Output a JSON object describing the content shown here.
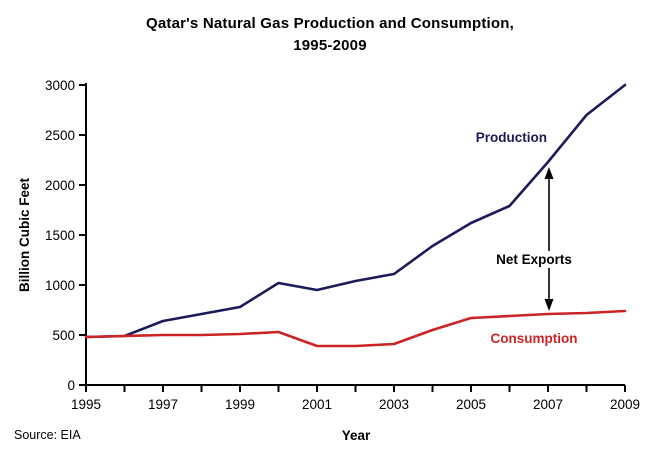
{
  "title": {
    "line1": "Qatar's Natural Gas Production and Consumption,",
    "line2": "1995-2009"
  },
  "source": "Source: EIA",
  "colors": {
    "production": "#1b1b5a",
    "consumption": "#cc2424",
    "axis": "#000000",
    "background": "#ffffff"
  },
  "chart_data": {
    "type": "line",
    "title": "Qatar's Natural Gas Production and Consumption, 1995-2009",
    "xlabel": "Year",
    "ylabel": "Billion Cubic Feet",
    "ylim": [
      0,
      3000
    ],
    "yticks": [
      0,
      500,
      1000,
      1500,
      2000,
      2500,
      3000
    ],
    "x": [
      1995,
      1996,
      1997,
      1998,
      1999,
      2000,
      2001,
      2002,
      2003,
      2004,
      2005,
      2006,
      2007,
      2008,
      2009
    ],
    "xtick_labels": [
      "1995",
      "1997",
      "1999",
      "2001",
      "2003",
      "2005",
      "2007",
      "2009"
    ],
    "grid": false,
    "legend_position": "inline-labels",
    "series": [
      {
        "name": "Production",
        "color": "#1b1b5a",
        "values": [
          480,
          490,
          640,
          710,
          780,
          1020,
          950,
          1040,
          1110,
          1390,
          1620,
          1790,
          2230,
          2700,
          3000
        ]
      },
      {
        "name": "Consumption",
        "color": "#cc2424",
        "values": [
          480,
          490,
          500,
          500,
          510,
          530,
          390,
          390,
          410,
          550,
          670,
          690,
          710,
          720,
          740
        ]
      }
    ],
    "annotation": {
      "label": "Net Exports",
      "year": 2007,
      "arrow": "double-headed-vertical"
    }
  }
}
